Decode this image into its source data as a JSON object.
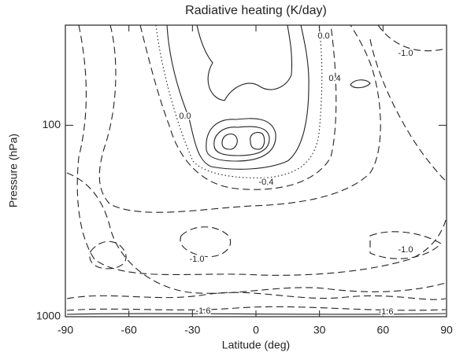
{
  "chart_data": {
    "type": "contour",
    "title": "Radiative heating (K/day)",
    "x_label": "Latitude (deg)",
    "y_label": "Pressure (hPa)",
    "xlim": [
      -90,
      90
    ],
    "xticks": [
      -90,
      -60,
      -30,
      0,
      30,
      60,
      90
    ],
    "ylim": [
      1000,
      30
    ],
    "yticks": [
      100,
      1000
    ],
    "log_y": true,
    "contour_labels": [
      "-1.0",
      "0.0",
      "0.4",
      "0.0",
      "-0.4",
      "-1.0",
      "-1.0",
      "-1.6",
      "-1.6"
    ]
  }
}
